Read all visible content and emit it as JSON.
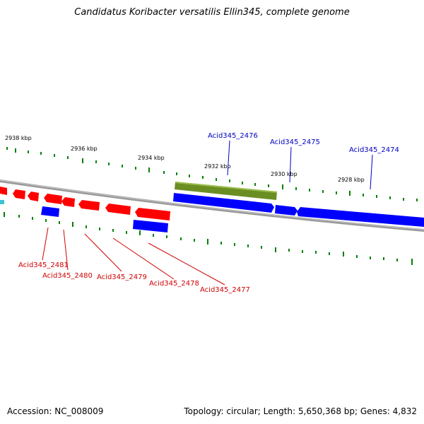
{
  "title": "Candidatus Koribacter versatilis Ellin345, complete genome",
  "footer": {
    "accession": "Accession: NC_008009",
    "summary": "Topology: circular; Length: 5,650,368 bp; Genes: 4,832"
  },
  "ticks": [
    "2938 kbp",
    "2936 kbp",
    "2934 kbp",
    "2932 kbp",
    "2930 kbp",
    "2928 kbp"
  ],
  "gene_labels_top": [
    "Acid345_2476",
    "Acid345_2475",
    "Acid345_2474"
  ],
  "gene_labels_bottom": [
    "Acid345_2481",
    "Acid345_2480",
    "Acid345_2479",
    "Acid345_2478",
    "Acid345_2477"
  ],
  "colors": {
    "forward_strand": "#0000ff",
    "reverse_strand": "#ff0000",
    "rna_feature": "#6b8e23",
    "backbone": "#808080",
    "ticks": "#008000",
    "label_top": "#0000c0",
    "label_bottom": "#d00000"
  }
}
